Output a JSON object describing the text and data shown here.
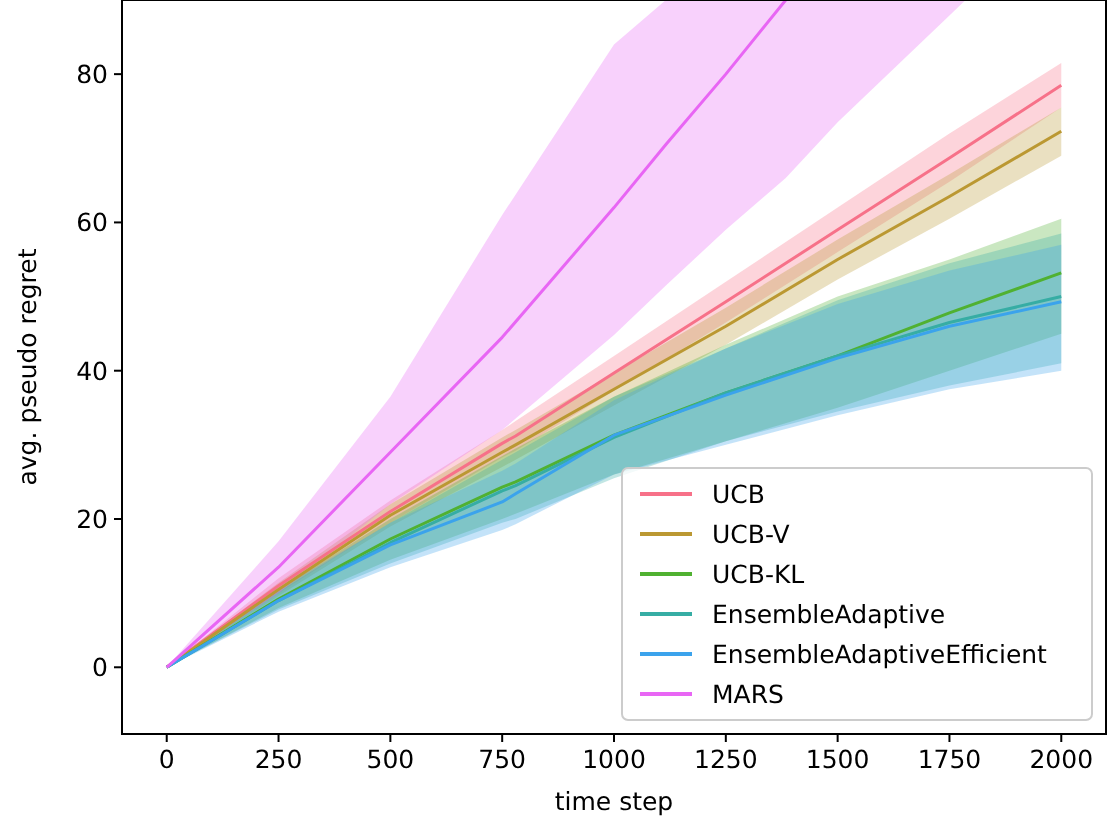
{
  "chart_data": {
    "type": "line",
    "xlabel": "time step",
    "ylabel": "avg. pseudo regret",
    "xlim": [
      -100,
      2100
    ],
    "ylim": [
      -9,
      90
    ],
    "xticks": [
      0,
      250,
      500,
      750,
      1000,
      1250,
      1500,
      1750,
      2000
    ],
    "yticks": [
      0,
      20,
      40,
      60,
      80
    ],
    "grid": false,
    "legend": "bottom right",
    "line_style": "solid",
    "marker": "none",
    "x": [
      0,
      250,
      500,
      750,
      780,
      1000,
      1250,
      1500,
      1750,
      2000
    ],
    "series": [
      {
        "name": "UCB",
        "color": "#f77189",
        "values": [
          0,
          11,
          21,
          30.2,
          31.2,
          39.7,
          49.3,
          59,
          68.7,
          78.5
        ],
        "lower": [
          0,
          10,
          19.5,
          28.3,
          29.2,
          37.3,
          46.5,
          56,
          65.5,
          75.5
        ],
        "upper": [
          0,
          12,
          22.5,
          32,
          33.2,
          42,
          52,
          62,
          72,
          81.5
        ]
      },
      {
        "name": "UCB-V",
        "color": "#bb9832",
        "values": [
          0,
          10.5,
          20.5,
          29,
          30,
          37.5,
          46,
          55,
          63.5,
          72.3
        ],
        "lower": [
          0,
          9.6,
          19,
          27,
          28,
          35.3,
          43.5,
          52.3,
          60.5,
          69
        ],
        "upper": [
          0,
          11.4,
          22,
          31,
          32,
          39.7,
          48.5,
          57.7,
          66.5,
          75.5
        ]
      },
      {
        "name": "UCB-KL",
        "color": "#50b131",
        "values": [
          0,
          9.2,
          17.3,
          24.3,
          25,
          31.3,
          37,
          42,
          47.8,
          53.2
        ],
        "lower": [
          0,
          8,
          14.5,
          20,
          20.7,
          26,
          30.5,
          35,
          40,
          45
        ],
        "upper": [
          0,
          10.5,
          20,
          28.5,
          29.5,
          36.5,
          43.5,
          50,
          55,
          60.5
        ]
      },
      {
        "name": "EnsembleAdaptive",
        "color": "#36ada4",
        "values": [
          0,
          9,
          16.8,
          23.8,
          24.5,
          31,
          37,
          42,
          46.5,
          50
        ],
        "lower": [
          0,
          7.8,
          14,
          19.5,
          20,
          25.5,
          30.5,
          34.5,
          38,
          41
        ],
        "upper": [
          0,
          10.2,
          19.5,
          28,
          29,
          36.5,
          43,
          49.5,
          54.5,
          58.5
        ]
      },
      {
        "name": "EnsembleAdaptiveEfficient",
        "color": "#3ba3ec",
        "values": [
          0,
          9,
          16.5,
          22.3,
          23.4,
          31.3,
          36.7,
          41.7,
          46,
          49.3
        ],
        "lower": [
          0,
          7.5,
          13.5,
          18.5,
          19.3,
          26,
          30,
          34,
          37.5,
          40
        ],
        "upper": [
          0,
          10.5,
          19.5,
          26.5,
          27.5,
          36,
          43,
          49,
          53.5,
          57
        ]
      },
      {
        "name": "MARS",
        "color": "#e866f4",
        "x": [
          0,
          250,
          500,
          750,
          1000,
          1116,
          1250,
          1384,
          1500,
          1750,
          1786
        ],
        "values": [
          0,
          13.5,
          29,
          44.5,
          62,
          70.5,
          80,
          90,
          null,
          null,
          null
        ],
        "lower": [
          0,
          10,
          22,
          32,
          44.8,
          51.5,
          59,
          66,
          73.5,
          87.9,
          90
        ],
        "upper": [
          0,
          17,
          36.5,
          61,
          84,
          90,
          90,
          90,
          90,
          90,
          90
        ]
      }
    ]
  }
}
